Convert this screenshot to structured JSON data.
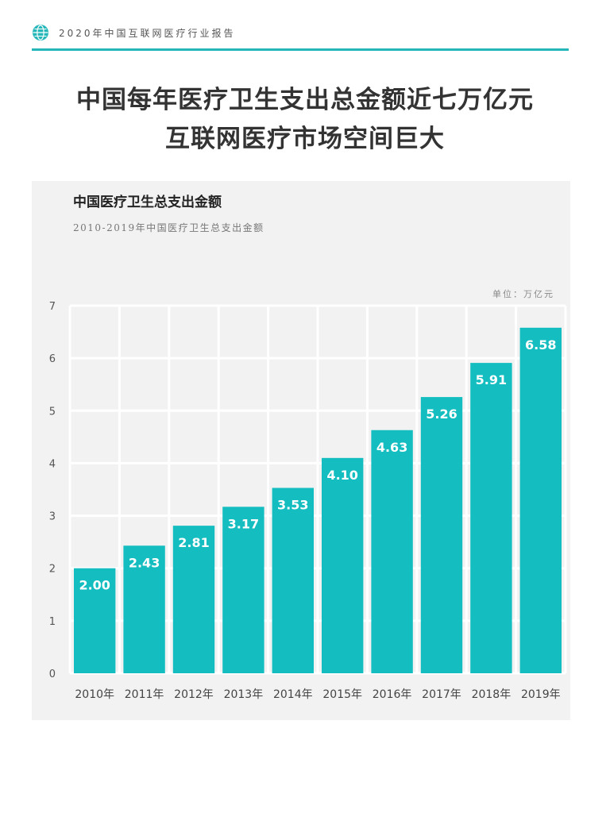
{
  "header": {
    "report_title": "2020年中国互联网医疗行业报告",
    "icon": "globe-icon",
    "accent_color": "#24b6b9"
  },
  "headline": {
    "line1": "中国每年医疗卫生支出总金额近七万亿元",
    "line2": "互联网医疗市场空间巨大"
  },
  "chart_data": {
    "type": "bar",
    "title": "中国医疗卫生总支出金额",
    "subtitle": "2010-2019年中国医疗卫生总支出金额",
    "unit": "单位：万亿元",
    "categories": [
      "2010年",
      "2011年",
      "2012年",
      "2013年",
      "2014年",
      "2015年",
      "2016年",
      "2017年",
      "2018年",
      "2019年"
    ],
    "values": [
      2.0,
      2.43,
      2.81,
      3.17,
      3.53,
      4.1,
      4.63,
      5.26,
      5.91,
      6.58
    ],
    "data_labels": [
      "2.00",
      "2.43",
      "2.81",
      "3.17",
      "3.53",
      "4.10",
      "4.63",
      "5.26",
      "5.91",
      "6.58"
    ],
    "y_ticks": [
      "0",
      "1",
      "2",
      "3",
      "4",
      "5",
      "6",
      "7"
    ],
    "ylim": [
      0,
      7
    ],
    "grid": true,
    "bar_color": "#14bdc0",
    "xlabel": "",
    "ylabel": ""
  }
}
